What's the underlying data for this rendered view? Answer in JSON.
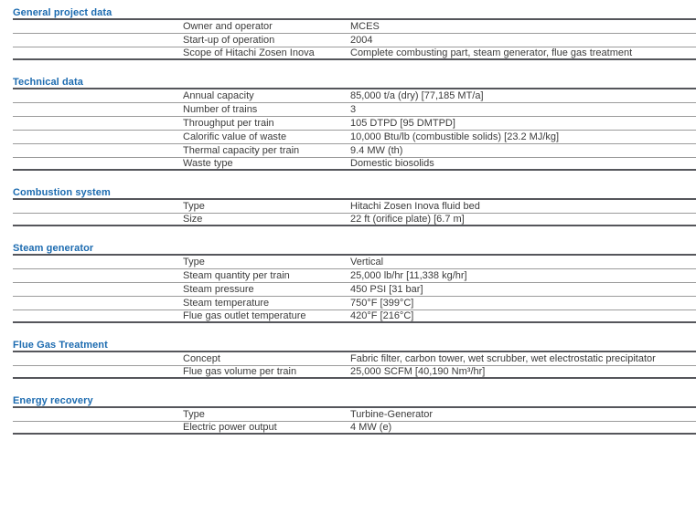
{
  "document": {
    "kind": "plant-datasheet-table",
    "colors": {
      "section_title_blue": "#1c6bb0",
      "body_text": "#3b3b3b",
      "rule_dark": "#55565b",
      "rule_light": "#9b9b9b",
      "background": "#ffffff"
    },
    "sections": [
      {
        "title": "General project data",
        "rows": [
          {
            "label": "Owner and operator",
            "value": "MCES"
          },
          {
            "label": "Start-up of operation",
            "value": "2004"
          },
          {
            "label": "Scope of Hitachi Zosen Inova",
            "value": "Complete combusting part, steam generator, flue gas treatment"
          }
        ]
      },
      {
        "title": "Technical data",
        "rows": [
          {
            "label": "Annual capacity",
            "value": "85,000 t/a (dry) [77,185 MT/a]"
          },
          {
            "label": "Number of trains",
            "value": "3"
          },
          {
            "label": "Throughput per train",
            "value": "105 DTPD [95 DMTPD]"
          },
          {
            "label": "Calorific value of waste",
            "value": "10,000 Btu/lb (combustible solids) [23.2 MJ/kg]"
          },
          {
            "label": "Thermal capacity per train",
            "value": "9.4 MW (th)"
          },
          {
            "label": "Waste type",
            "value": "Domestic biosolids"
          }
        ]
      },
      {
        "title": "Combustion system",
        "rows": [
          {
            "label": "Type",
            "value": "Hitachi Zosen Inova fluid bed"
          },
          {
            "label": "Size",
            "value": "22 ft (orifice plate) [6.7 m]"
          }
        ]
      },
      {
        "title": "Steam generator",
        "rows": [
          {
            "label": "Type",
            "value": "Vertical"
          },
          {
            "label": "Steam quantity per train",
            "value": "25,000 lb/hr [11,338 kg/hr]"
          },
          {
            "label": "Steam pressure",
            "value": "450 PSI [31 bar]"
          },
          {
            "label": "Steam temperature",
            "value": "750°F [399°C]"
          },
          {
            "label": "Flue gas outlet temperature",
            "value": "420°F [216°C]"
          }
        ]
      },
      {
        "title": "Flue Gas Treatment",
        "rows": [
          {
            "label": "Concept",
            "value": "Fabric filter, carbon tower, wet scrubber, wet electrostatic precipitator"
          },
          {
            "label": "Flue gas volume per train",
            "value": "25,000 SCFM [40,190 Nm³/hr]"
          }
        ]
      },
      {
        "title": "Energy recovery",
        "rows": [
          {
            "label": "Type",
            "value": "Turbine-Generator"
          },
          {
            "label": "Electric power output",
            "value": "4 MW (e)"
          }
        ]
      }
    ]
  }
}
